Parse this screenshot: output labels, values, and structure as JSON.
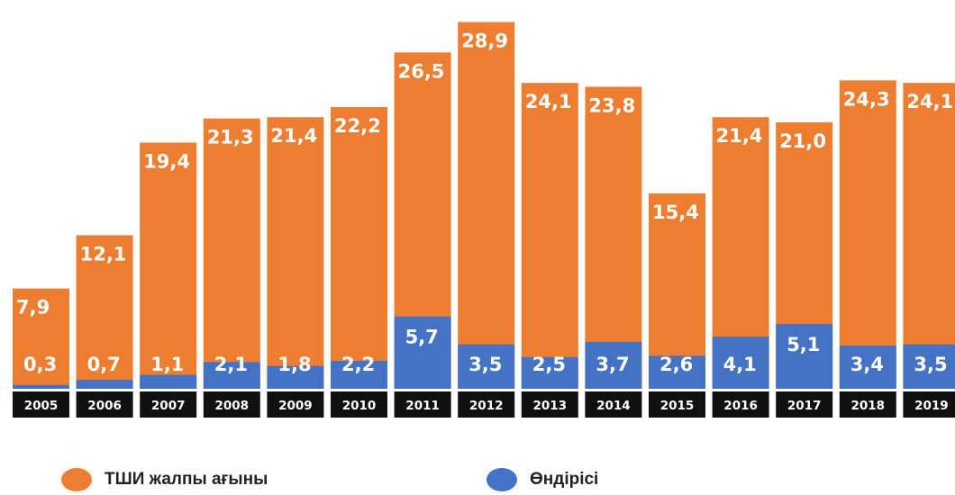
{
  "colors": {
    "total": "#ED7D31",
    "production": "#4472C4",
    "year_band": "#111111",
    "label": "#ffffff"
  },
  "legend": {
    "total_label": "ТШИ жалпы ағыны",
    "production_label": "Өндірісі"
  },
  "chart_data": {
    "type": "bar",
    "categories": [
      "2005",
      "2006",
      "2007",
      "2008",
      "2009",
      "2010",
      "2011",
      "2012",
      "2013",
      "2014",
      "2015",
      "2016",
      "2017",
      "2018",
      "2019"
    ],
    "series": [
      {
        "name": "ТШИ жалпы ағыны",
        "values": [
          7.9,
          12.1,
          19.4,
          21.3,
          21.4,
          22.2,
          26.5,
          28.9,
          24.1,
          23.8,
          15.4,
          21.4,
          21.0,
          24.3,
          24.1
        ],
        "labels": [
          "7,9",
          "12,1",
          "19,4",
          "21,3",
          "21,4",
          "22,2",
          "26,5",
          "28,9",
          "24,1",
          "23,8",
          "15,4",
          "21,4",
          "21,0",
          "24,3",
          "24,1"
        ]
      },
      {
        "name": "Өндірісі",
        "values": [
          0.3,
          0.7,
          1.1,
          2.1,
          1.8,
          2.2,
          5.7,
          3.5,
          2.5,
          3.7,
          2.6,
          4.1,
          5.1,
          3.4,
          3.5
        ],
        "labels": [
          "0,3",
          "0,7",
          "1,1",
          "2,1",
          "1,8",
          "2,2",
          "5,7",
          "3,5",
          "2,5",
          "3,7",
          "2,6",
          "4,1",
          "5,1",
          "3,4",
          "3,5"
        ]
      }
    ],
    "ylim": [
      0,
      29.5
    ],
    "grid": false,
    "legend_position": "bottom"
  }
}
